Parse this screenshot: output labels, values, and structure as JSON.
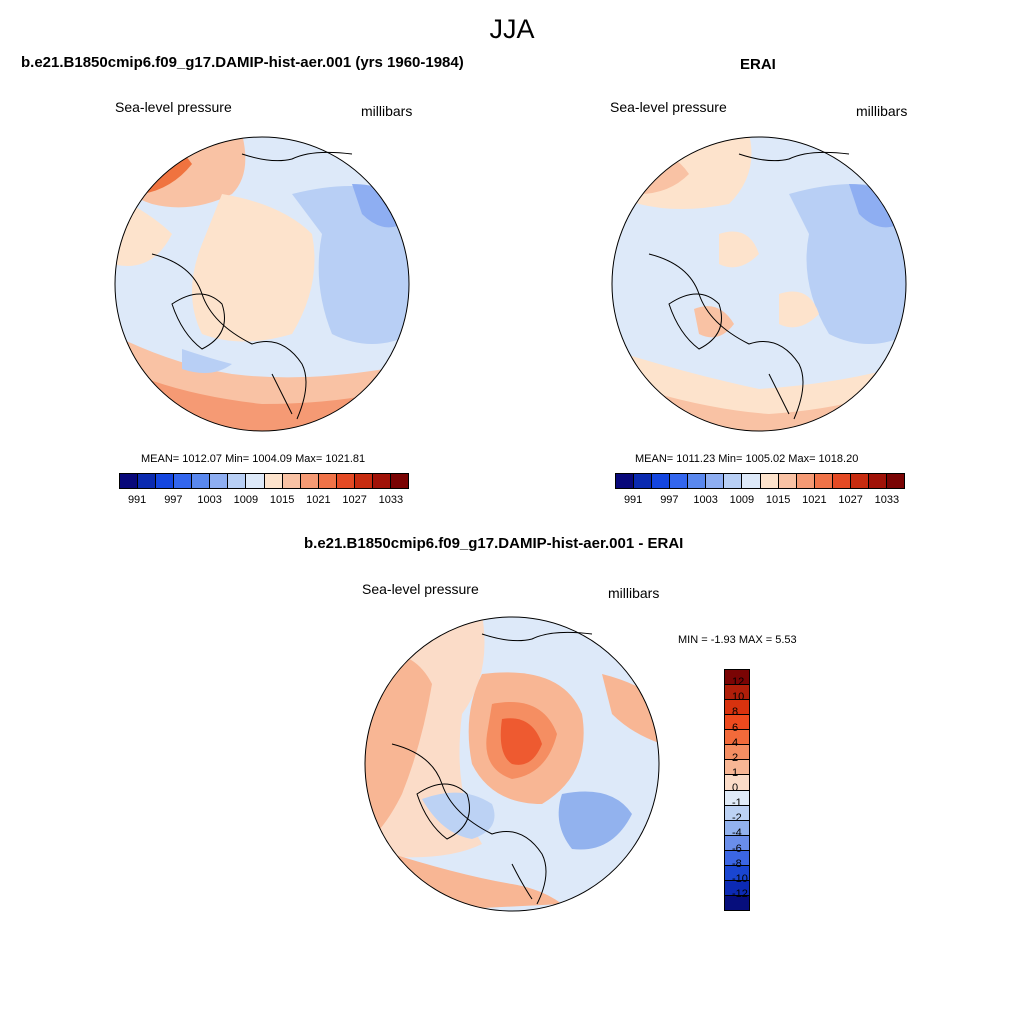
{
  "figure": {
    "season": "JJA",
    "panels": [
      {
        "title": "b.e21.B1850cmip6.f09_g17.DAMIP-hist-aer.001 (yrs 1960-1984)",
        "variable": "Sea-level pressure",
        "units": "millibars",
        "stats": "MEAN= 1012.07  Min= 1004.09  Max= 1021.81"
      },
      {
        "title": "ERAI",
        "variable": "Sea-level pressure",
        "units": "millibars",
        "stats": "MEAN= 1011.23  Min= 1005.02  Max= 1018.20"
      },
      {
        "title": "b.e21.B1850cmip6.f09_g17.DAMIP-hist-aer.001 - ERAI",
        "variable": "Sea-level pressure",
        "units": "millibars",
        "stats": "MIN =  -1.93 MAX =   5.53"
      }
    ],
    "colorbar_abs": {
      "tick_labels": [
        "991",
        "997",
        "1003",
        "1009",
        "1015",
        "1021",
        "1027",
        "1033"
      ],
      "colors": [
        "#08087a",
        "#0a2ab0",
        "#1446e0",
        "#3366ee",
        "#5a88ee",
        "#8eaef2",
        "#b8cff5",
        "#dde9f9",
        "#fde3cc",
        "#f9c2a4",
        "#f59a74",
        "#f07348",
        "#e44a24",
        "#c72c10",
        "#a01208",
        "#7a0404"
      ]
    },
    "colorbar_diff": {
      "tick_labels": [
        "12",
        "10",
        "8",
        "6",
        "4",
        "2",
        "1",
        "0",
        "-1",
        "-2",
        "-4",
        "-6",
        "-8",
        "-10",
        "-12"
      ],
      "colors": [
        "#7a0404",
        "#b01e0a",
        "#d8320e",
        "#ee4a1e",
        "#f26a3a",
        "#f58e62",
        "#f8b694",
        "#fbdcc8",
        "#e0ebf8",
        "#bcd2f4",
        "#92b2ee",
        "#6a8eea",
        "#3b66e4",
        "#1a46d2",
        "#0c2ab4",
        "#060e7c"
      ]
    },
    "map_fields": {
      "background": "#dde9f9",
      "panel1": [
        "#fde3cc",
        "#f9c2a4",
        "#f0733f",
        "#b8cff5",
        "#8eaef2"
      ],
      "panel2": [
        "#fde3cc",
        "#f9c2a4",
        "#f59a74",
        "#b8cff5",
        "#8eaef2"
      ],
      "diff": [
        "#fbdcc8",
        "#f8b694",
        "#f58e62",
        "#ee5a30",
        "#bcd2f4",
        "#92b2ee"
      ]
    }
  }
}
